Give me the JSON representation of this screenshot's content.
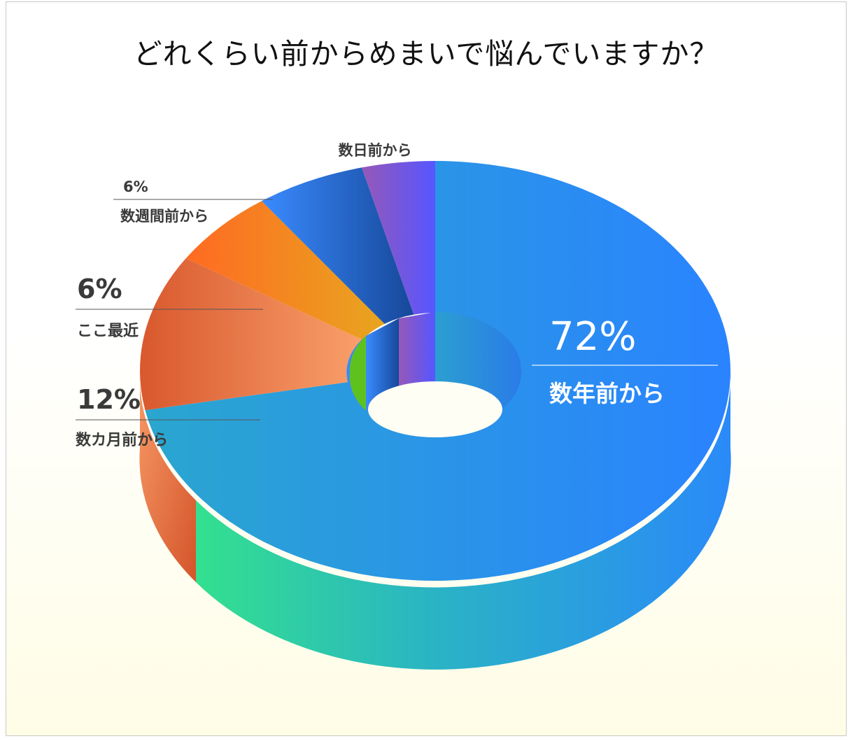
{
  "title": "どれくらい前からめまいで悩んでいますか？",
  "chart_data": {
    "type": "pie",
    "title": "どれくらい前からめまいで悩んでいますか？",
    "slices": [
      {
        "label": "数年前から",
        "value": 72,
        "value_label": "72%",
        "color_start": "#2da0d6",
        "color_end": "#2a83ff"
      },
      {
        "label": "数カ月前から",
        "value": 12,
        "value_label": "12%",
        "color_start": "#d9552b",
        "color_end": "#f7965a"
      },
      {
        "label": "ここ最近",
        "value": 6,
        "value_label": "6%",
        "color_start": "#ff6a22",
        "color_end": "#e8a51f"
      },
      {
        "label": "数週間前から",
        "value": 6,
        "value_label": "6%",
        "color_start": "#3a8bff",
        "color_end": "#1a4fa0"
      },
      {
        "label": "数日前から",
        "value": 4,
        "value_label": "",
        "color_start": "#8a5cc4",
        "color_end": "#5656ff"
      }
    ],
    "inner_slice_color": "#5ec21e",
    "legend": "none",
    "grid": false
  }
}
